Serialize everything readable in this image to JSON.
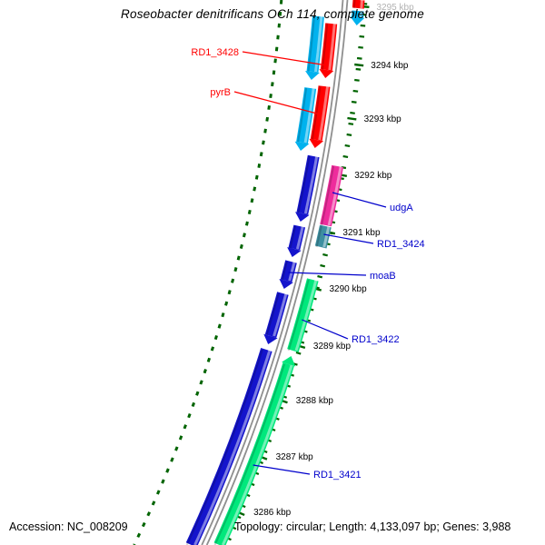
{
  "title": "Roseobacter denitrificans OCh 114, complete genome",
  "status_bar": {
    "accession": "Accession: NC_008209",
    "info": "Topology: circular; Length: 4,133,097 bp; Genes: 3,988"
  },
  "ruler": {
    "unit": "kbp",
    "tick_labels": [
      "3295 kbp",
      "3294 kbp",
      "3293 kbp",
      "3292 kbp",
      "3291 kbp",
      "3290 kbp",
      "3289 kbp",
      "3288 kbp",
      "3287 kbp",
      "3286 kbp"
    ]
  },
  "gene_labels": [
    {
      "text": "RD1_3428",
      "color": "#ff0000"
    },
    {
      "text": "pyrB",
      "color": "#ff0000"
    },
    {
      "text": "udgA",
      "color": "#0000cc"
    },
    {
      "text": "RD1_3424",
      "color": "#0000cc"
    },
    {
      "text": "moaB",
      "color": "#0000cc"
    },
    {
      "text": "RD1_3422",
      "color": "#0000cc"
    },
    {
      "text": "RD1_3421",
      "color": "#0000cc"
    }
  ],
  "features": [
    {
      "name": "",
      "color": "red"
    },
    {
      "name": "",
      "color": "cyan"
    },
    {
      "name": "",
      "color": "cyan"
    },
    {
      "name": "",
      "color": "cyan"
    },
    {
      "name": "RD1_3428",
      "color": "red"
    },
    {
      "name": "pyrB",
      "color": "red"
    },
    {
      "name": "",
      "color": "blue"
    },
    {
      "name": "",
      "color": "blue"
    },
    {
      "name": "moaB",
      "color": "blue"
    },
    {
      "name": "",
      "color": "blue"
    },
    {
      "name": "",
      "color": "blue"
    },
    {
      "name": "udgA",
      "color": "magenta"
    },
    {
      "name": "RD1_3424",
      "color": "teal"
    },
    {
      "name": "RD1_3422",
      "color": "green"
    },
    {
      "name": "RD1_3421",
      "color": "green"
    }
  ],
  "colors": {
    "red": "#ff0000",
    "cyan": "#00b2ee",
    "blue": "#1414cc",
    "magenta": "#ee2c9c",
    "teal": "#3e8fa0",
    "green": "#00e87c",
    "tick_green": "#006400",
    "backbone_gray": "#8f8f8f",
    "label_blue": "#0000cc",
    "label_red": "#ff0000",
    "faded_tick_label": "#b2b2b2",
    "tick_label_black": "#000000"
  }
}
